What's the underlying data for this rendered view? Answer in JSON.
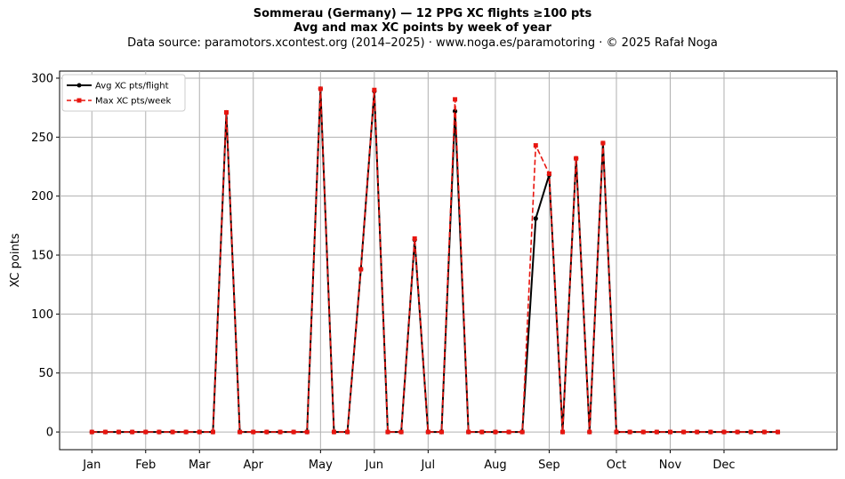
{
  "header": {
    "title": "Sommerau (Germany)  —  12 PPG XC flights ≥100 pts",
    "subtitle": "Avg and max XC points by week of year",
    "source": "Data source: paramotors.xcontest.org (2014–2025)  ·  www.noga.es/paramotoring  ·  © 2025 Rafał Noga"
  },
  "chart_data": {
    "type": "line",
    "title": "Sommerau (Germany)  —  12 PPG XC flights ≥100 pts",
    "subtitle": "Avg and max XC points by week of year",
    "xlabel": "",
    "ylabel": "XC points",
    "x_axis": "week of year",
    "xlim": [
      -2.4,
      55.4
    ],
    "ylim": [
      -15,
      306
    ],
    "grid": true,
    "legend_position": "top-left",
    "x_ticks": [
      {
        "label": "Jan",
        "week": 0
      },
      {
        "label": "Feb",
        "week": 4
      },
      {
        "label": "Mar",
        "week": 8
      },
      {
        "label": "Apr",
        "week": 12
      },
      {
        "label": "May",
        "week": 17
      },
      {
        "label": "Jun",
        "week": 21
      },
      {
        "label": "Jul",
        "week": 25
      },
      {
        "label": "Aug",
        "week": 30
      },
      {
        "label": "Sep",
        "week": 34
      },
      {
        "label": "Oct",
        "week": 39
      },
      {
        "label": "Nov",
        "week": 43
      },
      {
        "label": "Dec",
        "week": 47
      }
    ],
    "y_ticks": [
      0,
      50,
      100,
      150,
      200,
      250,
      300
    ],
    "x": [
      0,
      1,
      2,
      3,
      4,
      5,
      6,
      7,
      8,
      9,
      10,
      11,
      12,
      13,
      14,
      15,
      16,
      17,
      18,
      19,
      20,
      21,
      22,
      23,
      24,
      25,
      26,
      27,
      28,
      29,
      30,
      31,
      32,
      33,
      34,
      35,
      36,
      37,
      38,
      39,
      40,
      41,
      42,
      43,
      44,
      45,
      46,
      47,
      48,
      49,
      50,
      51
    ],
    "series": [
      {
        "name": "Avg XC pts/flight",
        "color": "#000000",
        "style": "solid",
        "marker": "circle",
        "values": [
          0,
          0,
          0,
          0,
          0,
          0,
          0,
          0,
          0,
          0,
          271,
          0,
          0,
          0,
          0,
          0,
          0,
          291,
          0,
          0,
          138,
          289,
          0,
          0,
          163,
          0,
          0,
          272,
          0,
          0,
          0,
          0,
          0,
          181,
          218,
          0,
          232,
          0,
          245,
          0,
          0,
          0,
          0,
          0,
          0,
          0,
          0,
          0,
          0,
          0,
          0,
          0
        ]
      },
      {
        "name": "Max XC pts/week",
        "color": "#e8150f",
        "style": "dashed",
        "marker": "square",
        "values": [
          0,
          0,
          0,
          0,
          0,
          0,
          0,
          0,
          0,
          0,
          271,
          0,
          0,
          0,
          0,
          0,
          0,
          291,
          0,
          0,
          138,
          290,
          0,
          0,
          164,
          0,
          0,
          282,
          0,
          0,
          0,
          0,
          0,
          243,
          219,
          0,
          232,
          0,
          245,
          0,
          0,
          0,
          0,
          0,
          0,
          0,
          0,
          0,
          0,
          0,
          0,
          0
        ]
      }
    ]
  }
}
